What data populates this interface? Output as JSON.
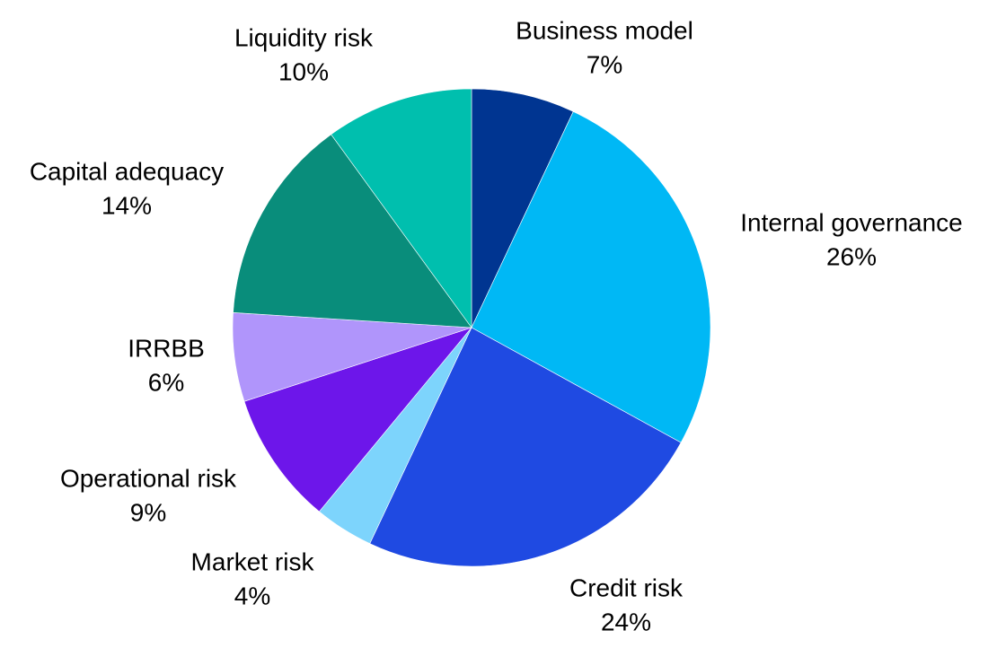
{
  "chart_data": {
    "type": "pie",
    "title": "",
    "slices": [
      {
        "label": "Business model",
        "value": 7,
        "value_label": "7%",
        "color": "#003591"
      },
      {
        "label": "Internal governance",
        "value": 26,
        "value_label": "26%",
        "color": "#00B8F5"
      },
      {
        "label": "Credit risk",
        "value": 24,
        "value_label": "24%",
        "color": "#1F4AE2"
      },
      {
        "label": "Market risk",
        "value": 4,
        "value_label": "4%",
        "color": "#7DD4FC"
      },
      {
        "label": "Operational risk",
        "value": 9,
        "value_label": "9%",
        "color": "#6D16EA"
      },
      {
        "label": "IRRBB",
        "value": 6,
        "value_label": "6%",
        "color": "#B095FB"
      },
      {
        "label": "Capital adequacy",
        "value": 14,
        "value_label": "14%",
        "color": "#098D7B"
      },
      {
        "label": "Liquidity risk",
        "value": 10,
        "value_label": "10%",
        "color": "#00BFAE"
      }
    ],
    "start": "12 o'clock",
    "direction": "clockwise",
    "labels_outside": true
  }
}
